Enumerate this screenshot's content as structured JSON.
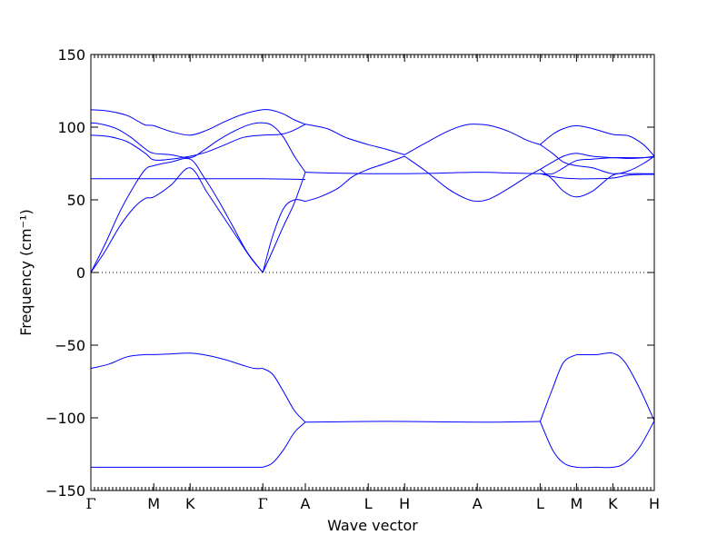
{
  "chart_data": {
    "type": "line",
    "xlabel": "Wave vector",
    "ylabel": "Frequency (cm⁻¹)",
    "ylim": [
      -150,
      150
    ],
    "yticks": [
      -150,
      -100,
      -50,
      0,
      50,
      100,
      150
    ],
    "xlim": [
      0,
      15.5
    ],
    "zero_line": "dotted",
    "line_color": "#0000ff",
    "high_symmetry_points": [
      {
        "label": "Γ",
        "x": 0.0
      },
      {
        "label": "M",
        "x": 1.73
      },
      {
        "label": "K",
        "x": 2.73
      },
      {
        "label": "Γ",
        "x": 4.73
      },
      {
        "label": "A",
        "x": 5.9
      },
      {
        "label": "L",
        "x": 7.63
      },
      {
        "label": "H",
        "x": 8.63
      },
      {
        "label": "A",
        "x": 10.63
      },
      {
        "label": "L",
        "x": 12.36
      },
      {
        "label": "M",
        "x": 13.36
      },
      {
        "label": "K",
        "x": 14.36
      },
      {
        "label": "H",
        "x": 15.5
      }
    ],
    "series": [
      {
        "x": [
          0,
          0.5,
          1,
          1.5,
          1.73,
          2.2,
          2.73,
          3.2,
          3.7,
          4.2,
          4.5,
          4.73
        ],
        "y": [
          -66,
          -63,
          -58,
          -56.5,
          -56.5,
          -56,
          -55.5,
          -57,
          -60,
          -64,
          -66,
          -66
        ]
      },
      {
        "x": [
          4.73,
          5.0,
          5.3,
          5.6,
          5.9
        ],
        "y": [
          -66,
          -70,
          -82,
          -95,
          -103
        ]
      },
      {
        "x": [
          4.73,
          5.0,
          5.3,
          5.6,
          5.9
        ],
        "y": [
          -134,
          -131,
          -122,
          -110,
          -103
        ]
      },
      {
        "x": [
          0,
          1,
          2,
          3,
          4,
          4.73
        ],
        "y": [
          -134,
          -134,
          -134,
          -134,
          -134,
          -134
        ]
      },
      {
        "x": [
          5.9,
          7.63,
          8.63,
          10.63,
          12.36
        ],
        "y": [
          -103,
          -102.5,
          -102.5,
          -103,
          -102.5
        ]
      },
      {
        "x": [
          12.36,
          12.7,
          13.0,
          13.36
        ],
        "y": [
          -102.5,
          -80,
          -62,
          -56.5
        ]
      },
      {
        "x": [
          13.36,
          13.9,
          14.36,
          14.7,
          15.1,
          15.5
        ],
        "y": [
          -56.5,
          -56.5,
          -55.5,
          -62,
          -80,
          -102
        ]
      },
      {
        "x": [
          12.36,
          12.7,
          13.0,
          13.36,
          13.9,
          14.36,
          14.7,
          15.1,
          15.5
        ],
        "y": [
          -102.5,
          -122,
          -131,
          -134,
          -134,
          -134,
          -131,
          -120,
          -102
        ]
      },
      {
        "x": [
          0,
          0.5,
          1.0,
          1.3,
          1.5,
          1.73,
          2.2,
          2.73,
          3.2,
          3.7,
          4.2,
          4.73,
          5.0,
          5.3,
          5.6,
          5.9
        ],
        "y": [
          112,
          111,
          108,
          104,
          101.5,
          101,
          97,
          94.5,
          98,
          104,
          109,
          112,
          111.5,
          109,
          105,
          102
        ]
      },
      {
        "x": [
          0,
          0.3,
          0.7,
          1.1,
          1.5,
          1.73,
          2.2,
          2.73,
          3.1,
          3.5,
          4.0,
          4.4,
          4.73,
          5.0,
          5.3,
          5.6,
          5.9
        ],
        "y": [
          103,
          102,
          99,
          93,
          85,
          82,
          81,
          79,
          84,
          91,
          98,
          102,
          103,
          101,
          93,
          80,
          69
        ]
      },
      {
        "x": [
          0,
          0.5,
          1.0,
          1.5,
          1.73,
          2.2,
          2.73,
          3.2,
          3.7,
          4.2,
          4.73,
          5.2,
          5.5,
          5.9
        ],
        "y": [
          94.5,
          93.5,
          90,
          82,
          77.5,
          78,
          80,
          83,
          88,
          93,
          94.5,
          95,
          97,
          102
        ]
      },
      {
        "x": [
          0,
          1,
          2,
          3,
          4,
          4.73,
          5.3,
          5.9
        ],
        "y": [
          64.5,
          64.5,
          64.5,
          64.5,
          64.5,
          64.5,
          64.3,
          64
        ]
      },
      {
        "x": [
          0,
          0.4,
          0.8,
          1.2,
          1.5,
          1.73,
          2.2,
          2.73,
          3.1,
          3.5,
          3.9,
          4.3,
          4.73
        ],
        "y": [
          0,
          20,
          42,
          60,
          71,
          73.5,
          76,
          78,
          66,
          50,
          32,
          14,
          0
        ]
      },
      {
        "x": [
          0,
          0.4,
          0.8,
          1.2,
          1.5,
          1.73,
          2.2,
          2.73,
          3.2,
          3.6,
          4.0,
          4.4,
          4.73
        ],
        "y": [
          0,
          15,
          32,
          45,
          51,
          52,
          60,
          72,
          55,
          40,
          25,
          10,
          0
        ]
      },
      {
        "x": [
          4.73,
          5.0,
          5.3,
          5.6,
          5.9
        ],
        "y": [
          0,
          25,
          44,
          50,
          49
        ]
      },
      {
        "x": [
          4.73,
          5.0,
          5.3,
          5.6,
          5.9
        ],
        "y": [
          0,
          15,
          32,
          48,
          69
        ]
      },
      {
        "x": [
          5.9,
          6.5,
          7.0,
          7.63,
          8.1,
          8.63
        ],
        "y": [
          69,
          68.5,
          68.3,
          68,
          68,
          68
        ]
      },
      {
        "x": [
          5.9,
          6.3,
          6.8,
          7.2,
          7.63,
          8.1,
          8.63
        ],
        "y": [
          49,
          52,
          58,
          66,
          71,
          75,
          80
        ]
      },
      {
        "x": [
          5.9,
          6.5,
          7.0,
          7.63,
          8.1,
          8.63
        ],
        "y": [
          102,
          99,
          93,
          88,
          85,
          81
        ]
      },
      {
        "x": [
          8.63,
          9.2,
          9.8,
          10.3,
          10.63,
          11.0,
          11.5,
          12.0,
          12.36
        ],
        "y": [
          81,
          89,
          97,
          101.5,
          102,
          101,
          97,
          91,
          88
        ]
      },
      {
        "x": [
          8.63,
          9.2,
          9.8,
          10.3,
          10.63,
          11.0,
          11.5,
          12.0,
          12.36
        ],
        "y": [
          80,
          70,
          58,
          51,
          49,
          51,
          58,
          66,
          71
        ]
      },
      {
        "x": [
          8.63,
          9.5,
          10.63,
          11.5,
          12.36
        ],
        "y": [
          68,
          68.3,
          69,
          68.5,
          68
        ]
      },
      {
        "x": [
          12.36,
          12.7,
          13.0,
          13.36,
          13.8,
          14.36,
          14.8,
          15.2,
          15.5
        ],
        "y": [
          88,
          95,
          99,
          101,
          99,
          95,
          94,
          88,
          80
        ]
      },
      {
        "x": [
          12.36,
          12.7,
          13.0,
          13.36,
          13.8,
          14.36,
          14.8,
          15.2,
          15.5
        ],
        "y": [
          71,
          76,
          80,
          82,
          80,
          79,
          78.5,
          79,
          80
        ]
      },
      {
        "x": [
          12.36,
          12.7,
          13.0,
          13.36,
          13.8,
          14.36,
          14.8,
          15.2,
          15.5
        ],
        "y": [
          68,
          68,
          72,
          77,
          78,
          79,
          79,
          79,
          79.5
        ]
      },
      {
        "x": [
          12.36,
          12.7,
          13.0,
          13.36,
          13.8,
          14.36,
          14.8,
          15.2,
          15.5
        ],
        "y": [
          88,
          82,
          76,
          73.5,
          72,
          68,
          70,
          75,
          80
        ]
      },
      {
        "x": [
          12.36,
          12.7,
          13.0,
          13.36,
          13.8,
          14.36,
          14.8,
          15.2,
          15.5
        ],
        "y": [
          68,
          66,
          65,
          64.5,
          64.5,
          65,
          67,
          67.5,
          67.5
        ]
      },
      {
        "x": [
          12.36,
          12.7,
          13.0,
          13.36,
          13.8,
          14.36,
          14.8,
          15.2,
          15.5
        ],
        "y": [
          71,
          64,
          56,
          52,
          56,
          67,
          68,
          68,
          68
        ]
      }
    ]
  }
}
